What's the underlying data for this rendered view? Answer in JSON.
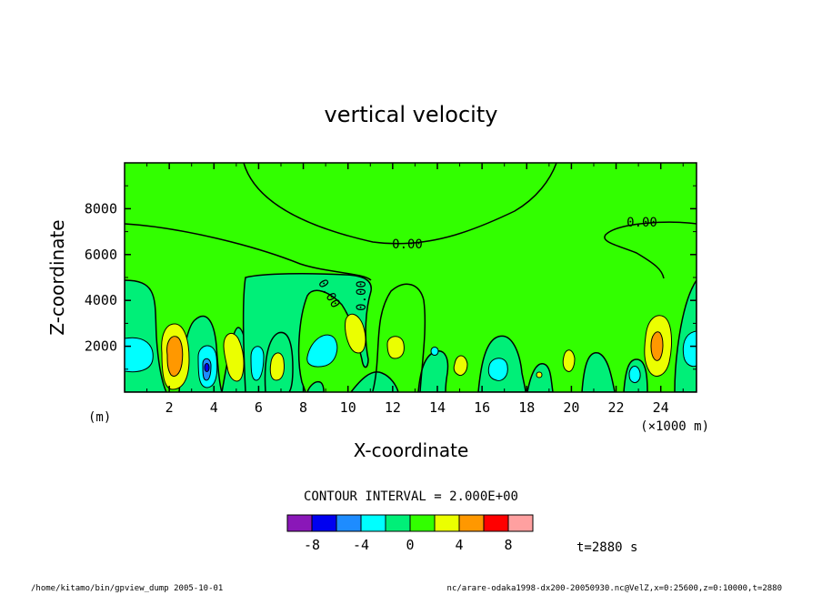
{
  "chart_data": {
    "type": "contour",
    "title": "vertical velocity",
    "xlabel": "X-coordinate",
    "ylabel": "Z-coordinate",
    "x_unit": "(×1000 m)",
    "y_unit": "(m)",
    "xlim": [
      0,
      25.6
    ],
    "ylim": [
      0,
      10000
    ],
    "x_ticks": [
      "2",
      "4",
      "6",
      "8",
      "10",
      "12",
      "14",
      "16",
      "18",
      "20",
      "22",
      "24"
    ],
    "y_ticks": [
      "2000",
      "4000",
      "6000",
      "8000"
    ],
    "contour_labels": [
      "0.00",
      "0.00",
      "0.00",
      "0.00"
    ],
    "contour_interval_text": "CONTOUR INTERVAL = 2.000E+00",
    "colorbar": {
      "levels": [
        -10,
        -8,
        -6,
        -4,
        -2,
        0,
        2,
        4,
        6,
        8,
        10
      ],
      "colors": [
        "#8a17b8",
        "#0000f0",
        "#1e8cff",
        "#00ffff",
        "#00ef78",
        "#32ff00",
        "#ebff00",
        "#ff9800",
        "#ff0000",
        "#ffa0a0"
      ],
      "tick_labels": [
        "-8",
        "-4",
        "0",
        "4",
        "8"
      ]
    },
    "time_label": "t=2880 s",
    "cells": [
      {
        "x": 1.8,
        "z": 1900,
        "w_min": 6,
        "w_max": 8
      },
      {
        "x": 3.7,
        "z": 1100,
        "w_min": -8,
        "w_max": -6
      },
      {
        "x": 23.7,
        "z": 2300,
        "w_min": 6,
        "w_max": 8
      },
      {
        "x": 8.9,
        "z": 1900,
        "w_min": -4,
        "w_max": -2
      },
      {
        "x": 10.4,
        "z": 2600,
        "w_min": 2,
        "w_max": 4
      },
      {
        "x": 12.1,
        "z": 2200,
        "w_min": 2,
        "w_max": 4
      }
    ]
  },
  "footer": {
    "left": "/home/kitamo/bin/gpview_dump  2005-10-01",
    "right": "nc/arare-odaka1998-dx200-20050930.nc@VelZ,x=0:25600,z=0:10000,t=2880"
  }
}
